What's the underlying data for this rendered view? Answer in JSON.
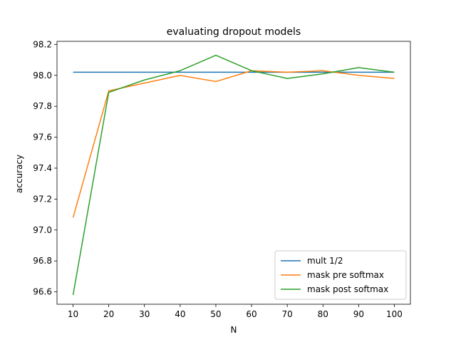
{
  "chart_data": {
    "type": "line",
    "title": "evaluating dropout models",
    "xlabel": "N",
    "ylabel": "accuracy",
    "x": [
      10,
      20,
      30,
      40,
      50,
      60,
      70,
      80,
      90,
      100
    ],
    "xticks": [
      "10",
      "20",
      "30",
      "40",
      "50",
      "60",
      "70",
      "80",
      "90",
      "100"
    ],
    "yticks": [
      "96.6",
      "96.8",
      "97.0",
      "97.2",
      "97.4",
      "97.6",
      "97.8",
      "98.0",
      "98.2"
    ],
    "xlim": [
      5.5,
      104.5
    ],
    "ylim": [
      96.52,
      98.22
    ],
    "grid": false,
    "legend_position": "lower right",
    "series": [
      {
        "name": "mult 1/2",
        "color": "#1f77b4",
        "values": [
          98.02,
          98.02,
          98.02,
          98.02,
          98.02,
          98.02,
          98.02,
          98.02,
          98.02,
          98.02
        ]
      },
      {
        "name": "mask pre softmax",
        "color": "#ff7f0e",
        "values": [
          97.08,
          97.9,
          97.95,
          98.0,
          97.96,
          98.03,
          98.02,
          98.03,
          98.0,
          97.98
        ]
      },
      {
        "name": "mask post softmax",
        "color": "#2ca02c",
        "values": [
          96.58,
          97.89,
          97.97,
          98.03,
          98.13,
          98.03,
          97.98,
          98.01,
          98.05,
          98.02
        ]
      }
    ]
  }
}
